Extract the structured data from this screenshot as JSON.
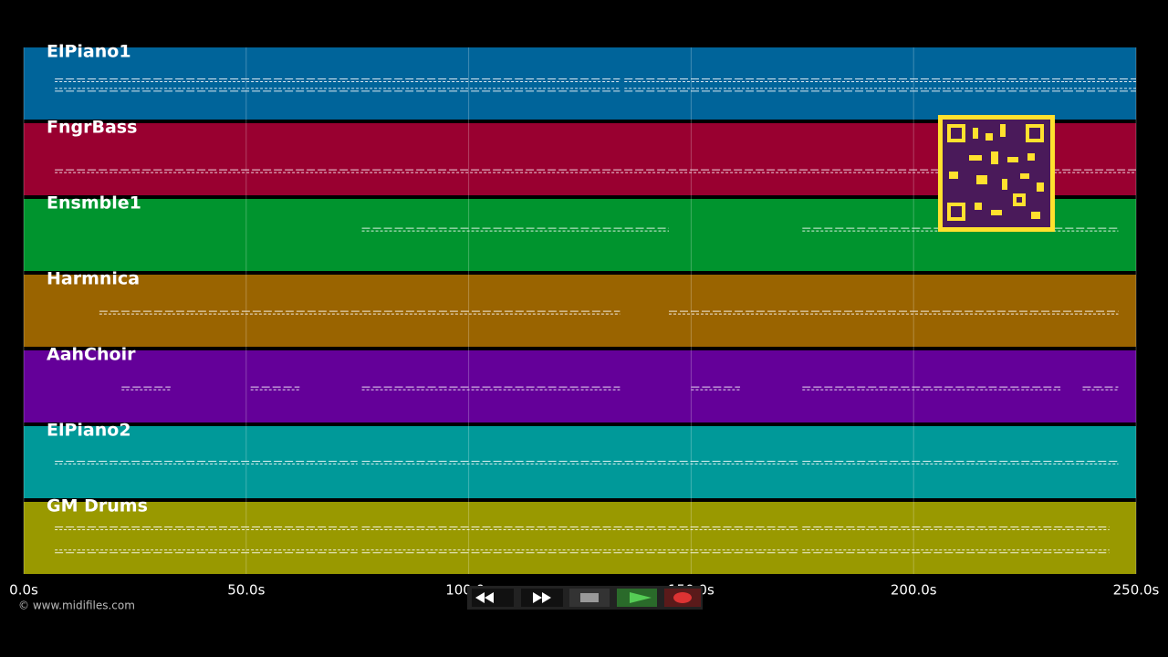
{
  "chart_data": {
    "type": "timeline",
    "xlim": [
      0,
      250
    ],
    "xticks": [
      {
        "value": 0,
        "label": "0.0s"
      },
      {
        "value": 50,
        "label": "50.0s"
      },
      {
        "value": 100,
        "label": "100.0s"
      },
      {
        "value": 150,
        "label": "150.0s"
      },
      {
        "value": 200,
        "label": "200.0s"
      },
      {
        "value": 250,
        "label": "250.0s"
      }
    ],
    "grid": true,
    "tracks": [
      {
        "name": "ElPiano1",
        "color": "#00649a",
        "segments": [
          [
            7,
            134
          ],
          [
            135,
            145
          ],
          [
            145,
            234
          ],
          [
            234,
            250
          ]
        ]
      },
      {
        "name": "FngrBass",
        "color": "#990030",
        "segments": [
          [
            7,
            250
          ]
        ]
      },
      {
        "name": "Ensmble1",
        "color": "#00942e",
        "segments": [
          [
            76,
            145
          ],
          [
            175,
            246
          ]
        ]
      },
      {
        "name": "Harmnica",
        "color": "#9a6400",
        "segments": [
          [
            17,
            134
          ],
          [
            145,
            246
          ]
        ]
      },
      {
        "name": "AahChoir",
        "color": "#640099",
        "segments": [
          [
            22,
            33
          ],
          [
            51,
            62
          ],
          [
            76,
            134
          ],
          [
            150,
            161
          ],
          [
            175,
            233
          ],
          [
            238,
            246
          ]
        ]
      },
      {
        "name": "ElPiano2",
        "color": "#009999",
        "segments": [
          [
            7,
            75
          ],
          [
            76,
            174
          ],
          [
            175,
            246
          ]
        ]
      },
      {
        "name": "GM Drums",
        "color": "#999900",
        "segments": [
          [
            7,
            75
          ],
          [
            76,
            174
          ],
          [
            175,
            244
          ]
        ]
      }
    ]
  },
  "footer": {
    "credit": "© www.midifiles.com"
  }
}
